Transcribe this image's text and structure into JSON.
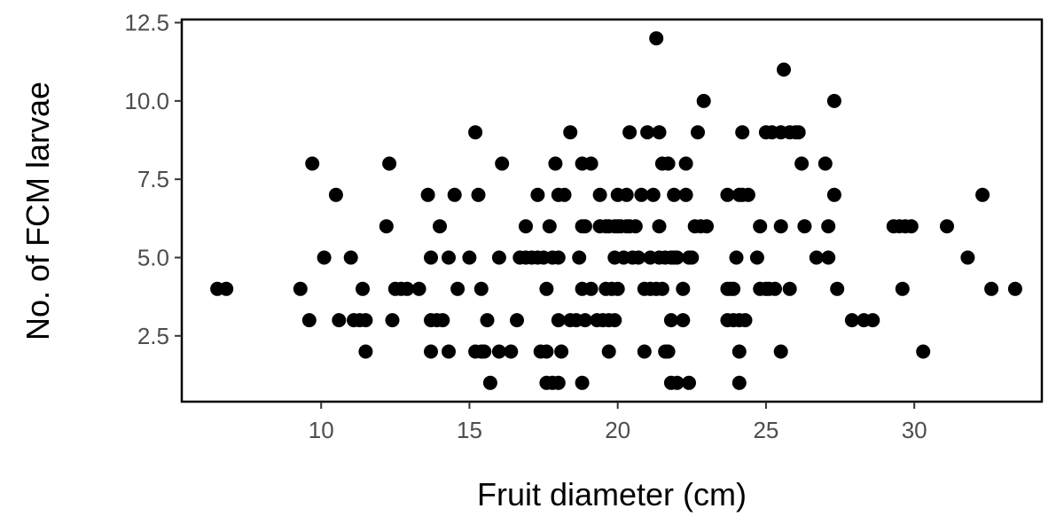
{
  "chart_data": {
    "type": "scatter",
    "title": "",
    "xlabel": "Fruit diameter (cm)",
    "ylabel": "No. of FCM larvae",
    "xlim": [
      5.3,
      34.3
    ],
    "ylim": [
      0.4,
      12.6
    ],
    "x_ticks": [
      10,
      15,
      20,
      25,
      30
    ],
    "y_ticks": [
      2.5,
      5.0,
      7.5,
      10.0,
      12.5
    ],
    "x_tick_labels": [
      "10",
      "15",
      "20",
      "25",
      "30"
    ],
    "y_tick_labels": [
      "2.5",
      "5.0",
      "7.5",
      "10.0",
      "12.5"
    ],
    "grid": false,
    "point_color": "#000000",
    "points": [
      [
        6.5,
        4
      ],
      [
        6.8,
        4
      ],
      [
        9.3,
        4
      ],
      [
        9.6,
        3
      ],
      [
        9.7,
        8
      ],
      [
        10.1,
        5
      ],
      [
        10.5,
        7
      ],
      [
        10.6,
        3
      ],
      [
        11.0,
        5
      ],
      [
        11.1,
        3
      ],
      [
        11.3,
        3
      ],
      [
        11.4,
        4
      ],
      [
        11.5,
        3
      ],
      [
        11.5,
        2
      ],
      [
        12.2,
        6
      ],
      [
        12.3,
        8
      ],
      [
        12.4,
        3
      ],
      [
        12.5,
        4
      ],
      [
        12.7,
        4
      ],
      [
        12.9,
        4
      ],
      [
        13.3,
        4
      ],
      [
        13.6,
        7
      ],
      [
        13.7,
        5
      ],
      [
        13.7,
        3
      ],
      [
        13.7,
        2
      ],
      [
        13.9,
        3
      ],
      [
        14.0,
        6
      ],
      [
        14.1,
        3
      ],
      [
        14.3,
        5
      ],
      [
        14.3,
        2
      ],
      [
        14.5,
        7
      ],
      [
        14.6,
        4
      ],
      [
        15.0,
        5
      ],
      [
        15.2,
        2
      ],
      [
        15.2,
        9
      ],
      [
        15.3,
        7
      ],
      [
        15.4,
        4
      ],
      [
        15.4,
        2
      ],
      [
        15.5,
        2
      ],
      [
        15.6,
        3
      ],
      [
        15.7,
        1
      ],
      [
        16.0,
        5
      ],
      [
        16.0,
        2
      ],
      [
        16.1,
        8
      ],
      [
        16.4,
        2
      ],
      [
        16.6,
        3
      ],
      [
        16.7,
        5
      ],
      [
        16.9,
        6
      ],
      [
        16.9,
        5
      ],
      [
        17.1,
        5
      ],
      [
        17.3,
        7
      ],
      [
        17.3,
        5
      ],
      [
        17.4,
        2
      ],
      [
        17.5,
        5
      ],
      [
        17.6,
        2
      ],
      [
        17.6,
        1
      ],
      [
        17.6,
        4
      ],
      [
        17.7,
        6
      ],
      [
        17.8,
        5
      ],
      [
        17.8,
        1
      ],
      [
        17.9,
        8
      ],
      [
        18.0,
        7
      ],
      [
        18.0,
        5
      ],
      [
        18.0,
        1
      ],
      [
        18.0,
        3
      ],
      [
        18.1,
        2
      ],
      [
        18.2,
        7
      ],
      [
        18.4,
        3
      ],
      [
        18.4,
        9
      ],
      [
        18.6,
        3
      ],
      [
        18.7,
        5
      ],
      [
        18.8,
        6
      ],
      [
        18.8,
        4
      ],
      [
        18.8,
        1
      ],
      [
        18.8,
        8
      ],
      [
        18.9,
        6
      ],
      [
        18.9,
        3
      ],
      [
        19.1,
        8
      ],
      [
        19.1,
        4
      ],
      [
        19.3,
        3
      ],
      [
        19.4,
        7
      ],
      [
        19.4,
        6
      ],
      [
        19.5,
        3
      ],
      [
        19.6,
        6
      ],
      [
        19.6,
        4
      ],
      [
        19.7,
        2
      ],
      [
        19.7,
        6
      ],
      [
        19.7,
        3
      ],
      [
        19.8,
        4
      ],
      [
        19.9,
        6
      ],
      [
        19.9,
        5
      ],
      [
        19.9,
        3
      ],
      [
        20.0,
        7
      ],
      [
        20.0,
        4
      ],
      [
        20.0,
        6
      ],
      [
        20.1,
        6
      ],
      [
        20.2,
        5
      ],
      [
        20.3,
        7
      ],
      [
        20.3,
        6
      ],
      [
        20.4,
        9
      ],
      [
        20.4,
        6
      ],
      [
        20.5,
        5
      ],
      [
        20.6,
        6
      ],
      [
        20.7,
        5
      ],
      [
        20.8,
        7
      ],
      [
        20.9,
        4
      ],
      [
        20.9,
        2
      ],
      [
        21.0,
        9
      ],
      [
        21.1,
        4
      ],
      [
        21.1,
        5
      ],
      [
        21.2,
        7
      ],
      [
        21.3,
        12
      ],
      [
        21.3,
        4
      ],
      [
        21.4,
        9
      ],
      [
        21.4,
        5
      ],
      [
        21.4,
        6
      ],
      [
        21.5,
        4
      ],
      [
        21.5,
        8
      ],
      [
        21.6,
        5
      ],
      [
        21.6,
        2
      ],
      [
        21.7,
        2
      ],
      [
        21.7,
        8
      ],
      [
        21.8,
        5
      ],
      [
        21.8,
        1
      ],
      [
        21.8,
        3
      ],
      [
        21.9,
        7
      ],
      [
        21.9,
        5
      ],
      [
        22.0,
        1
      ],
      [
        22.0,
        5
      ],
      [
        22.2,
        4
      ],
      [
        22.2,
        3
      ],
      [
        22.3,
        8
      ],
      [
        22.3,
        7
      ],
      [
        22.4,
        5
      ],
      [
        22.4,
        1
      ],
      [
        22.5,
        5
      ],
      [
        22.6,
        6
      ],
      [
        22.7,
        9
      ],
      [
        22.8,
        6
      ],
      [
        22.9,
        10
      ],
      [
        23.0,
        6
      ],
      [
        23.7,
        7
      ],
      [
        23.7,
        4
      ],
      [
        23.7,
        3
      ],
      [
        23.8,
        4
      ],
      [
        23.9,
        4
      ],
      [
        23.9,
        3
      ],
      [
        24.0,
        5
      ],
      [
        24.1,
        3
      ],
      [
        24.1,
        2
      ],
      [
        24.1,
        7
      ],
      [
        24.1,
        1
      ],
      [
        24.2,
        9
      ],
      [
        24.2,
        7
      ],
      [
        24.3,
        3
      ],
      [
        24.4,
        7
      ],
      [
        24.7,
        5
      ],
      [
        24.8,
        6
      ],
      [
        24.8,
        4
      ],
      [
        25.0,
        4
      ],
      [
        25.0,
        9
      ],
      [
        25.1,
        4
      ],
      [
        25.2,
        9
      ],
      [
        25.3,
        4
      ],
      [
        25.5,
        9
      ],
      [
        25.5,
        6
      ],
      [
        25.5,
        2
      ],
      [
        25.6,
        11
      ],
      [
        25.8,
        9
      ],
      [
        25.8,
        4
      ],
      [
        26.0,
        9
      ],
      [
        26.1,
        9
      ],
      [
        26.2,
        8
      ],
      [
        26.3,
        6
      ],
      [
        26.7,
        5
      ],
      [
        27.0,
        8
      ],
      [
        27.1,
        6
      ],
      [
        27.1,
        5
      ],
      [
        27.3,
        7
      ],
      [
        27.3,
        10
      ],
      [
        27.4,
        4
      ],
      [
        27.9,
        3
      ],
      [
        28.3,
        3
      ],
      [
        28.6,
        3
      ],
      [
        29.3,
        6
      ],
      [
        29.5,
        6
      ],
      [
        29.6,
        4
      ],
      [
        29.7,
        6
      ],
      [
        29.9,
        6
      ],
      [
        30.3,
        2
      ],
      [
        31.1,
        6
      ],
      [
        31.8,
        5
      ],
      [
        32.3,
        7
      ],
      [
        32.6,
        4
      ],
      [
        33.4,
        4
      ]
    ]
  }
}
